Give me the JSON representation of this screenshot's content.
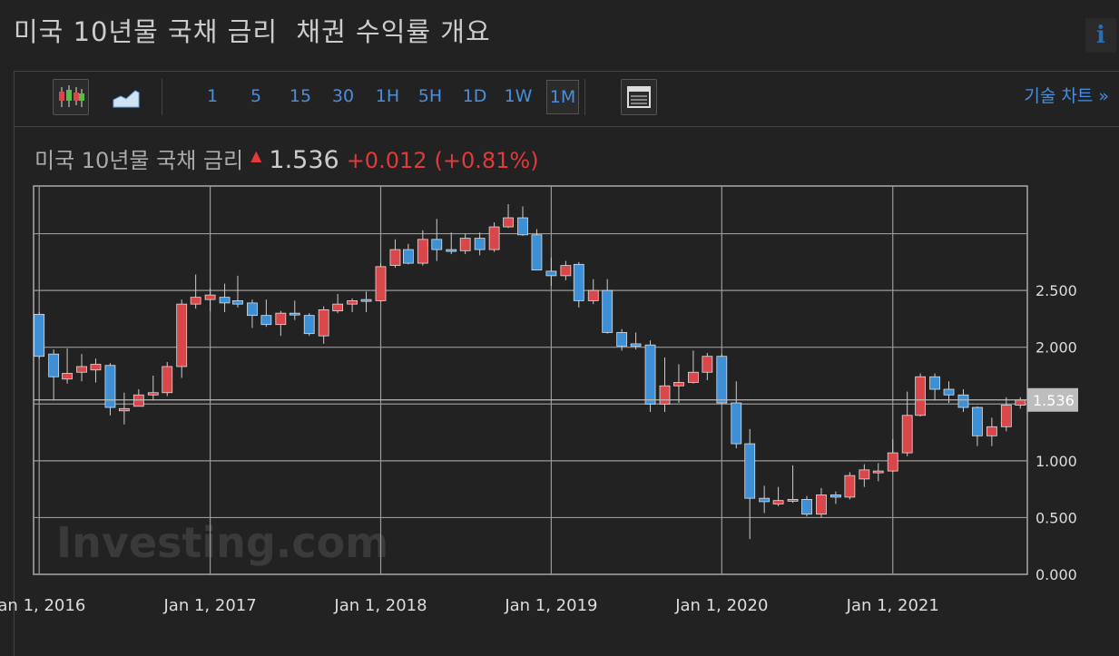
{
  "page": {
    "title": "미국 10년물 국채 금리  채권 수익률 개요",
    "info": "i",
    "intervals": [
      "1",
      "5",
      "15",
      "30",
      "1H",
      "5H",
      "1D",
      "1W",
      "1M"
    ],
    "selected_interval": "1M",
    "tech_chart": "기술 차트 »"
  },
  "chart_data": {
    "type": "candlestick",
    "title": "미국 10년물 국채 금리",
    "last_price": 1.536,
    "change": "+0.012",
    "percent_change": "(+0.81%)",
    "watermark": "Investing.com",
    "up_color": "#d9474a",
    "down_color": "#3d8fd6",
    "grid": true,
    "x": [
      "2016-01-01",
      "2016-02-01",
      "2016-03-01",
      "2016-04-01",
      "2016-05-01",
      "2016-06-01",
      "2016-07-01",
      "2016-08-01",
      "2016-09-01",
      "2016-10-01",
      "2016-11-01",
      "2016-12-01",
      "2017-01-01",
      "2017-02-01",
      "2017-03-01",
      "2017-04-01",
      "2017-05-01",
      "2017-06-01",
      "2017-07-01",
      "2017-08-01",
      "2017-09-01",
      "2017-10-01",
      "2017-11-01",
      "2017-12-01",
      "2018-01-01",
      "2018-02-01",
      "2018-03-01",
      "2018-04-01",
      "2018-05-01",
      "2018-06-01",
      "2018-07-01",
      "2018-08-01",
      "2018-09-01",
      "2018-10-01",
      "2018-11-01",
      "2018-12-01",
      "2019-01-01",
      "2019-02-01",
      "2019-03-01",
      "2019-04-01",
      "2019-05-01",
      "2019-06-01",
      "2019-07-01",
      "2019-08-01",
      "2019-09-01",
      "2019-10-01",
      "2019-11-01",
      "2019-12-01",
      "2020-01-01",
      "2020-02-01",
      "2020-03-01",
      "2020-04-01",
      "2020-05-01",
      "2020-06-01",
      "2020-07-01",
      "2020-08-01",
      "2020-09-01",
      "2020-10-01",
      "2020-11-01",
      "2020-12-01",
      "2021-01-01",
      "2021-02-01",
      "2021-03-01",
      "2021-04-01",
      "2021-05-01",
      "2021-06-01",
      "2021-07-01",
      "2021-08-01",
      "2021-09-01",
      "2021-10-01"
    ],
    "open": [
      2.29,
      1.94,
      1.72,
      1.78,
      1.8,
      1.84,
      1.44,
      1.48,
      1.58,
      1.6,
      1.83,
      2.38,
      2.42,
      2.44,
      2.41,
      2.39,
      2.28,
      2.2,
      2.3,
      2.28,
      2.1,
      2.32,
      2.38,
      2.42,
      2.41,
      2.72,
      2.86,
      2.74,
      2.95,
      2.86,
      2.85,
      2.96,
      2.86,
      3.06,
      3.14,
      2.99,
      2.67,
      2.63,
      2.73,
      2.41,
      2.5,
      2.13,
      2.03,
      2.02,
      1.5,
      1.66,
      1.69,
      1.78,
      1.92,
      1.51,
      1.15,
      0.67,
      0.62,
      0.65,
      0.66,
      0.53,
      0.7,
      0.68,
      0.84,
      0.91,
      0.91,
      1.07,
      1.4,
      1.74,
      1.63,
      1.58,
      1.47,
      1.22,
      1.3,
      1.49
    ],
    "high": [
      2.31,
      1.98,
      1.99,
      1.94,
      1.9,
      1.86,
      1.6,
      1.63,
      1.75,
      1.87,
      2.42,
      2.64,
      2.52,
      2.56,
      2.63,
      2.42,
      2.42,
      2.32,
      2.41,
      2.3,
      2.36,
      2.47,
      2.43,
      2.49,
      2.74,
      2.95,
      2.91,
      3.03,
      3.13,
      3.01,
      3.0,
      3.01,
      3.1,
      3.26,
      3.24,
      3.04,
      2.79,
      2.76,
      2.75,
      2.6,
      2.6,
      2.16,
      2.13,
      2.06,
      1.91,
      1.85,
      1.97,
      1.95,
      1.94,
      1.7,
      1.28,
      0.78,
      0.77,
      0.96,
      0.69,
      0.76,
      0.73,
      0.9,
      0.97,
      0.98,
      1.19,
      1.61,
      1.77,
      1.77,
      1.7,
      1.63,
      1.48,
      1.38,
      1.56,
      1.56
    ],
    "low": [
      1.9,
      1.53,
      1.68,
      1.7,
      1.69,
      1.4,
      1.32,
      1.5,
      1.53,
      1.57,
      1.73,
      2.34,
      2.32,
      2.31,
      2.35,
      2.17,
      2.18,
      2.1,
      2.24,
      2.1,
      2.03,
      2.3,
      2.31,
      2.31,
      2.4,
      2.7,
      2.73,
      2.72,
      2.76,
      2.82,
      2.82,
      2.81,
      2.84,
      3.05,
      2.98,
      2.68,
      2.54,
      2.59,
      2.35,
      2.38,
      2.12,
      1.97,
      1.98,
      1.43,
      1.43,
      1.51,
      1.68,
      1.71,
      1.5,
      1.11,
      0.31,
      0.54,
      0.6,
      0.63,
      0.51,
      0.5,
      0.62,
      0.66,
      0.77,
      0.82,
      0.9,
      1.04,
      1.39,
      1.53,
      1.51,
      1.43,
      1.13,
      1.13,
      1.26,
      1.46
    ],
    "close": [
      1.92,
      1.74,
      1.77,
      1.83,
      1.85,
      1.47,
      1.46,
      1.58,
      1.6,
      1.83,
      2.38,
      2.44,
      2.46,
      2.39,
      2.38,
      2.28,
      2.2,
      2.3,
      2.29,
      2.12,
      2.33,
      2.38,
      2.41,
      2.41,
      2.71,
      2.86,
      2.74,
      2.95,
      2.86,
      2.85,
      2.96,
      2.86,
      3.06,
      3.14,
      2.99,
      2.68,
      2.63,
      2.72,
      2.41,
      2.5,
      2.13,
      2.01,
      2.01,
      1.5,
      1.66,
      1.69,
      1.78,
      1.92,
      1.51,
      1.15,
      0.67,
      0.64,
      0.65,
      0.66,
      0.53,
      0.7,
      0.68,
      0.87,
      0.92,
      0.91,
      1.07,
      1.4,
      1.74,
      1.63,
      1.58,
      1.47,
      1.22,
      1.3,
      1.49,
      1.536
    ],
    "xlim": [
      "2015-12-20",
      "2021-10-16"
    ],
    "xticks": [
      {
        "value": "2016-01-01",
        "label": "Jan 1, 2016"
      },
      {
        "value": "2017-01-01",
        "label": "Jan 1, 2017"
      },
      {
        "value": "2018-01-01",
        "label": "Jan 1, 2018"
      },
      {
        "value": "2019-01-01",
        "label": "Jan 1, 2019"
      },
      {
        "value": "2020-01-01",
        "label": "Jan 1, 2020"
      },
      {
        "value": "2021-01-01",
        "label": "Jan 1, 2021"
      }
    ],
    "ylim": [
      0,
      3.42
    ],
    "yticks": [
      {
        "value": 0,
        "label": "0.000"
      },
      {
        "value": 0.5,
        "label": "0.500"
      },
      {
        "value": 1,
        "label": "1.000"
      },
      {
        "value": 1.5,
        "label": "1.500"
      },
      {
        "value": 2,
        "label": "2.000"
      },
      {
        "value": 2.5,
        "label": "2.500"
      },
      {
        "value": 3,
        "label": null
      }
    ]
  }
}
